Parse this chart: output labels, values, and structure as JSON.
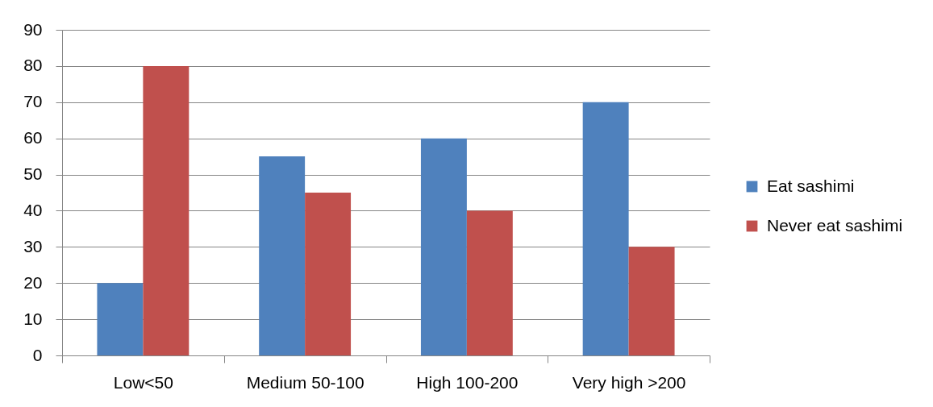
{
  "chart_data": {
    "type": "bar",
    "categories": [
      "Low<50",
      "Medium 50-100",
      "High 100-200",
      "Very high >200"
    ],
    "series": [
      {
        "name": "Eat sashimi",
        "color": "#4f81bd",
        "values": [
          20,
          55,
          60,
          70
        ]
      },
      {
        "name": "Never eat sashimi",
        "color": "#c0504d",
        "values": [
          80,
          45,
          40,
          30
        ]
      }
    ],
    "ylim": [
      0,
      90
    ],
    "yticks": [
      0,
      10,
      20,
      30,
      40,
      50,
      60,
      70,
      80,
      90
    ],
    "grid": "y",
    "legend": "right"
  }
}
